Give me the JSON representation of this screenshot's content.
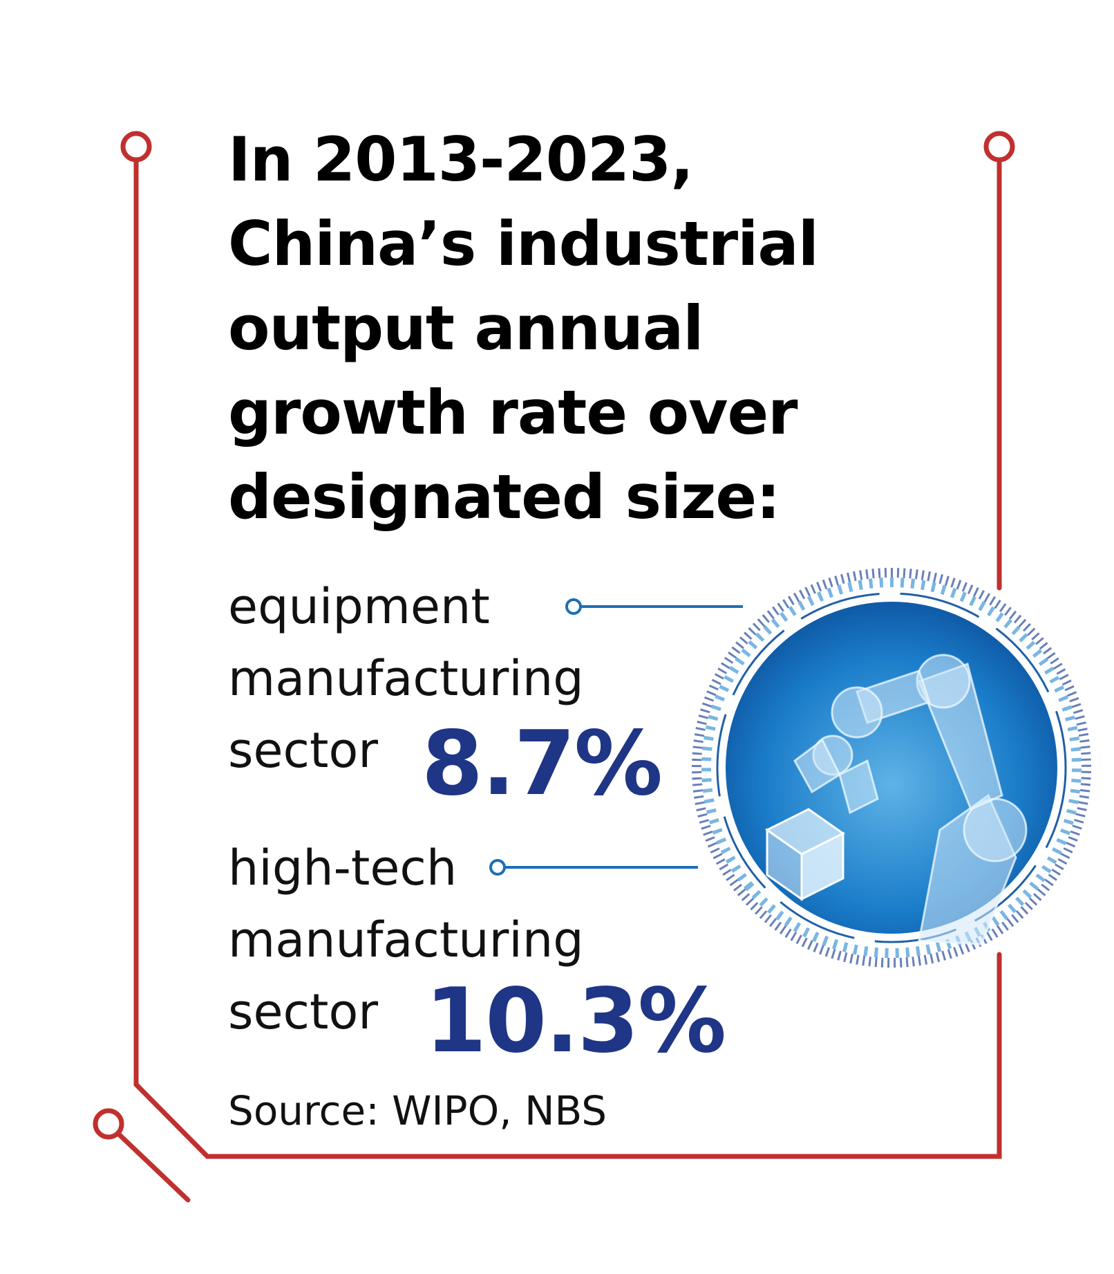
{
  "title_lines": [
    "In 2013-2023,",
    "China’s industrial",
    "output annual",
    "growth rate over",
    "designated size:"
  ],
  "items": [
    {
      "label_lines": [
        "equipment",
        "manufacturing",
        "sector"
      ],
      "value": "8.7%"
    },
    {
      "label_lines": [
        "high-tech",
        "manufacturing",
        "sector"
      ],
      "value": "10.3%"
    }
  ],
  "source": "Source: WIPO, NBS",
  "colors": {
    "frame_red": "#c0302e",
    "value_blue": "#1f3586",
    "connector_blue": "#1e6fb3",
    "circle_blue": "#1a7cc9"
  },
  "illustration": "robot-arm-icon"
}
